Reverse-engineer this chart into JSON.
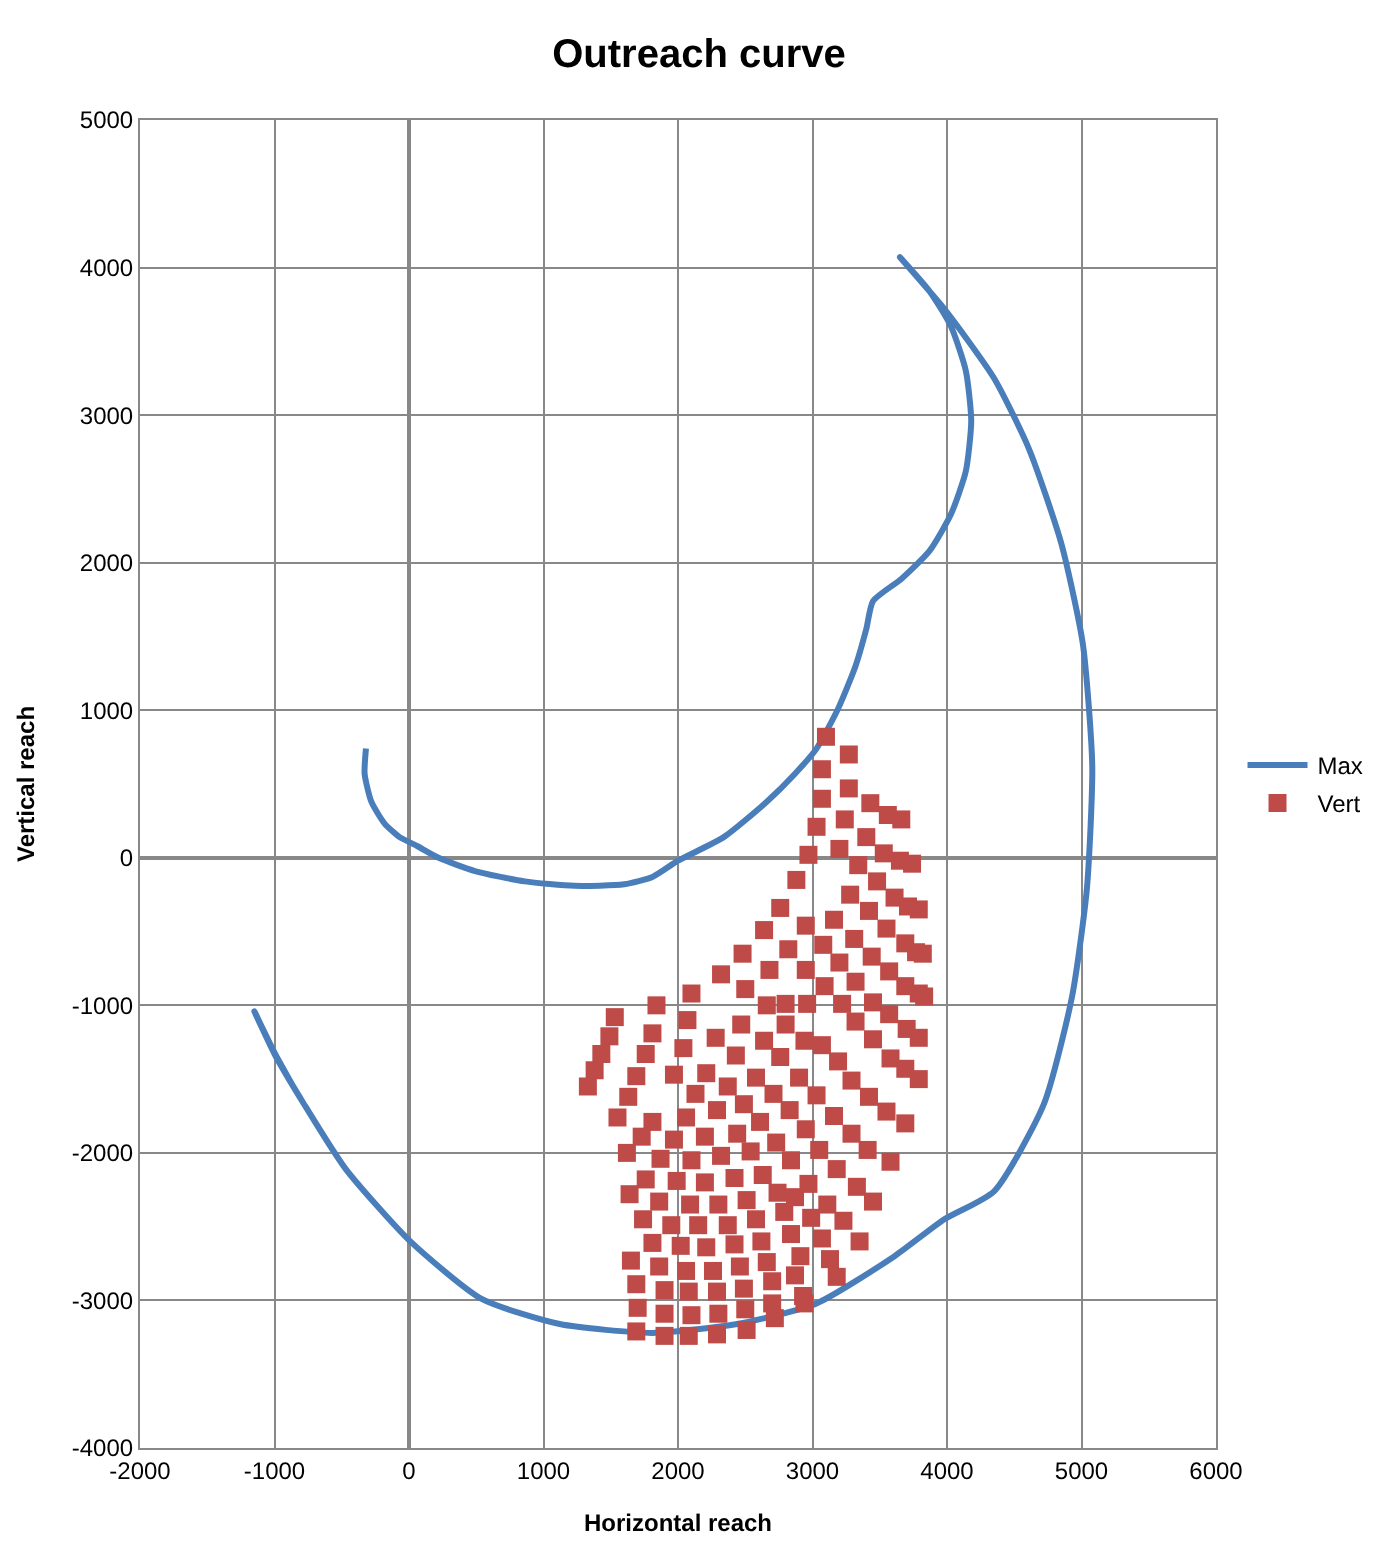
{
  "chart_data": {
    "type": "scatter",
    "title": "Outreach curve",
    "xlabel": "Horizontal reach",
    "ylabel": "Vertical reach",
    "xlim": [
      -2000,
      6000
    ],
    "xticks": [
      -2000,
      -1000,
      0,
      1000,
      2000,
      3000,
      4000,
      5000,
      6000
    ],
    "ylim": [
      -4000,
      5000
    ],
    "yticks": [
      -4000,
      -3000,
      -2000,
      -1000,
      0,
      1000,
      2000,
      3000,
      4000,
      5000
    ],
    "grid": true,
    "legend": "right",
    "series": [
      {
        "name": "Max",
        "type": "line",
        "color": "#4a7ebb",
        "marker": "none",
        "line_style": "solid",
        "x": [
          -320,
          -330,
          -280,
          -180,
          -70,
          60,
          220,
          490,
          860,
          1230,
          1600,
          1810,
          2000,
          2340,
          2660,
          2870,
          3030,
          3190,
          3320,
          3400,
          3450,
          3660,
          3870,
          4030,
          4140,
          4180,
          4140,
          4030,
          3870,
          3650,
          3980,
          4350,
          4610,
          4850,
          5010,
          5080,
          5040,
          4930,
          4720,
          4350,
          3980,
          3610,
          3030,
          2440,
          1810,
          1120,
          540,
          10,
          -470,
          -780,
          -1000,
          -1150,
          -1000,
          -860
        ],
        "values": [
          740,
          570,
          380,
          230,
          140,
          80,
          0,
          -90,
          -160,
          -190,
          -180,
          -130,
          -20,
          140,
          380,
          570,
          740,
          1010,
          1300,
          1550,
          1740,
          1890,
          2080,
          2330,
          2620,
          2960,
          3300,
          3600,
          3840,
          4070,
          3720,
          3250,
          2770,
          2130,
          1450,
          620,
          -210,
          -940,
          -1670,
          -2260,
          -2450,
          -2700,
          -3020,
          -3160,
          -3220,
          -3160,
          -2990,
          -2600,
          -2110,
          -1670,
          -1330,
          -1040,
          -1320,
          -1550
        ]
      },
      {
        "name": "Vert",
        "color": "#be4b48",
        "marker": "square",
        "x": [
          3100,
          3270,
          3070,
          3270,
          3070,
          3430,
          3560,
          3660,
          3240,
          3030,
          3400,
          3530,
          3650,
          3740,
          3200,
          2970,
          3340,
          3480,
          3610,
          3710,
          3790,
          2880,
          3280,
          3420,
          3550,
          3690,
          3770,
          3820,
          2760,
          3160,
          2950,
          3310,
          3440,
          3570,
          3690,
          3790,
          3830,
          2640,
          2820,
          3080,
          3200,
          3320,
          3450,
          3570,
          3700,
          3790,
          2480,
          2680,
          2950,
          2320,
          2500,
          2100,
          2660,
          2800,
          3090,
          1840,
          1530,
          2070,
          2470,
          2800,
          2960,
          2940,
          3220,
          3320,
          3450,
          3580,
          3690,
          3790,
          1490,
          1810,
          2280,
          2640,
          3070,
          1430,
          2040,
          2430,
          2760,
          3190,
          1380,
          1760,
          2210,
          2580,
          2900,
          3290,
          3420,
          3550,
          3690,
          1330,
          1690,
          1970,
          2370,
          2710,
          3030,
          1630,
          2130,
          2490,
          2830,
          3160,
          3290,
          3410,
          3580,
          1550,
          1810,
          2060,
          2290,
          2610,
          2950,
          1730,
          1970,
          2200,
          2440,
          2730,
          3050,
          3180,
          3330,
          3450,
          1620,
          1870,
          2100,
          2320,
          2540,
          2840,
          1760,
          1990,
          2200,
          2420,
          2630,
          2970,
          3110,
          3230,
          3350,
          1640,
          1860,
          2090,
          2300,
          2510,
          2740,
          2870,
          1740,
          1950,
          2150,
          2370,
          2580,
          2790,
          2990,
          3070,
          3180,
          1810,
          2020,
          2210,
          2420,
          2620,
          2840,
          2910,
          3130,
          1650,
          1860,
          2060,
          2260,
          2460,
          2660,
          2870,
          1690,
          1900,
          2080,
          2290,
          2490,
          2700,
          2930,
          1700,
          1900,
          2100,
          2300,
          2500,
          2700,
          2940,
          1690,
          1900,
          2080,
          2290,
          2510,
          2720
        ],
        "values": [
          820,
          700,
          600,
          470,
          400,
          370,
          290,
          260,
          260,
          210,
          140,
          30,
          -20,
          -40,
          60,
          20,
          -50,
          -160,
          -270,
          -330,
          -350,
          -150,
          -250,
          -360,
          -480,
          -580,
          -640,
          -650,
          -340,
          -420,
          -460,
          -550,
          -670,
          -770,
          -870,
          -920,
          -940,
          -490,
          -620,
          -590,
          -710,
          -840,
          -980,
          -1060,
          -1160,
          -1220,
          -650,
          -760,
          -760,
          -790,
          -890,
          -920,
          -1000,
          -990,
          -870,
          -1000,
          -1080,
          -1100,
          -1130,
          -1130,
          -990,
          -1240,
          -990,
          -1110,
          -1230,
          -1360,
          -1430,
          -1500,
          -1210,
          -1190,
          -1220,
          -1240,
          -1270,
          -1330,
          -1290,
          -1340,
          -1350,
          -1380,
          -1440,
          -1330,
          -1460,
          -1490,
          -1490,
          -1510,
          -1620,
          -1720,
          -1800,
          -1550,
          -1480,
          -1470,
          -1550,
          -1600,
          -1610,
          -1620,
          -1600,
          -1670,
          -1710,
          -1750,
          -1870,
          -1980,
          -2060,
          -1760,
          -1790,
          -1760,
          -1710,
          -1790,
          -1840,
          -1890,
          -1910,
          -1890,
          -1870,
          -1930,
          -1980,
          -2110,
          -2230,
          -2330,
          -2000,
          -2040,
          -2050,
          -2020,
          -1990,
          -2050,
          -2180,
          -2190,
          -2200,
          -2170,
          -2150,
          -2210,
          -2350,
          -2460,
          -2600,
          -2280,
          -2330,
          -2350,
          -2350,
          -2320,
          -2270,
          -2300,
          -2450,
          -2490,
          -2490,
          -2490,
          -2450,
          -2400,
          -2440,
          -2580,
          -2840,
          -2610,
          -2630,
          -2640,
          -2620,
          -2600,
          -2550,
          -2700,
          -2720,
          -2730,
          -2770,
          -2800,
          -2800,
          -2770,
          -2740,
          -2830,
          -2890,
          -2930,
          -2940,
          -2940,
          -2920,
          -2870,
          -2970,
          -3050,
          -3090,
          -3100,
          -3090,
          -3060,
          -3020,
          -3020,
          -3210,
          -3240,
          -3240,
          -3230,
          -3200,
          -3120
        ]
      }
    ]
  }
}
